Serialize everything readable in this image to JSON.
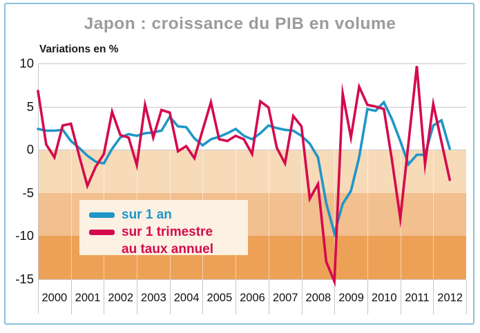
{
  "title": "Japon : croissance du PIB en volume",
  "y_axis_unit": "Variations en %",
  "legend": {
    "series1_label": "sur 1 an",
    "series2_label_line1": "sur 1 trimestre",
    "series2_label_line2": "au taux annuel"
  },
  "colors": {
    "frame": "#8abfdf",
    "title": "#9b9b9b",
    "text": "#1a1a1a",
    "grid": "#c6c6c6",
    "band_divider": "rgba(255,255,255,0.5)",
    "bands": [
      "#f7dbb9",
      "#f2bf8e",
      "#eda157"
    ],
    "legend_bg": "#fcf1e3",
    "blue": "#2095c8",
    "red": "#d40a4d"
  },
  "chart_data": {
    "type": "line",
    "title": "Japon : croissance du PIB en volume",
    "ylabel": "Variations en %",
    "ylim": [
      -15,
      10
    ],
    "y_ticks": [
      10,
      5,
      0,
      -5,
      -10,
      -15
    ],
    "x_years": [
      "2000",
      "2001",
      "2002",
      "2003",
      "2004",
      "2005",
      "2006",
      "2007",
      "2008",
      "2009",
      "2010",
      "2011",
      "2012"
    ],
    "x_frequency": "quarterly",
    "x_range": "2000Q1 - 2012Q3",
    "grid": "horizontal-only",
    "legend_position": "inside-left-middle",
    "background_bands": [
      {
        "from": 0,
        "to": -5
      },
      {
        "from": -5,
        "to": -10
      },
      {
        "from": -10,
        "to": -15
      }
    ],
    "series": [
      {
        "name": "sur 1 an",
        "color_key": "blue",
        "values": [
          2.4,
          2.2,
          2.2,
          2.3,
          1.0,
          0.2,
          -0.7,
          -1.4,
          -1.6,
          0.1,
          1.4,
          1.8,
          1.6,
          1.9,
          2.0,
          2.2,
          3.8,
          2.7,
          2.6,
          1.3,
          0.5,
          1.2,
          1.5,
          1.9,
          2.4,
          1.6,
          1.2,
          1.9,
          2.8,
          2.5,
          2.3,
          2.2,
          1.6,
          0.7,
          -0.9,
          -6.2,
          -9.7,
          -6.3,
          -4.8,
          -0.9,
          4.7,
          4.5,
          5.5,
          3.5,
          1.0,
          -1.7,
          -0.6,
          -0.6,
          2.8,
          3.4,
          0.1
        ]
      },
      {
        "name": "sur 1 trimestre au taux annuel",
        "color_key": "red",
        "values": [
          6.8,
          0.6,
          -0.9,
          2.8,
          3.0,
          -0.7,
          -4.2,
          -2.0,
          -0.5,
          4.4,
          1.7,
          1.4,
          -1.8,
          5.2,
          1.4,
          4.6,
          4.3,
          -0.2,
          0.4,
          -1.0,
          2.3,
          5.5,
          1.2,
          1.0,
          1.6,
          1.2,
          -0.5,
          5.6,
          4.9,
          0.2,
          -1.6,
          3.9,
          2.7,
          -5.7,
          -4.0,
          -13.0,
          -15.3,
          6.5,
          1.4,
          7.3,
          5.2,
          5.0,
          4.7,
          -1.3,
          -8.0,
          0.8,
          9.7,
          -1.7,
          5.3,
          0.9,
          -3.5
        ]
      }
    ]
  }
}
